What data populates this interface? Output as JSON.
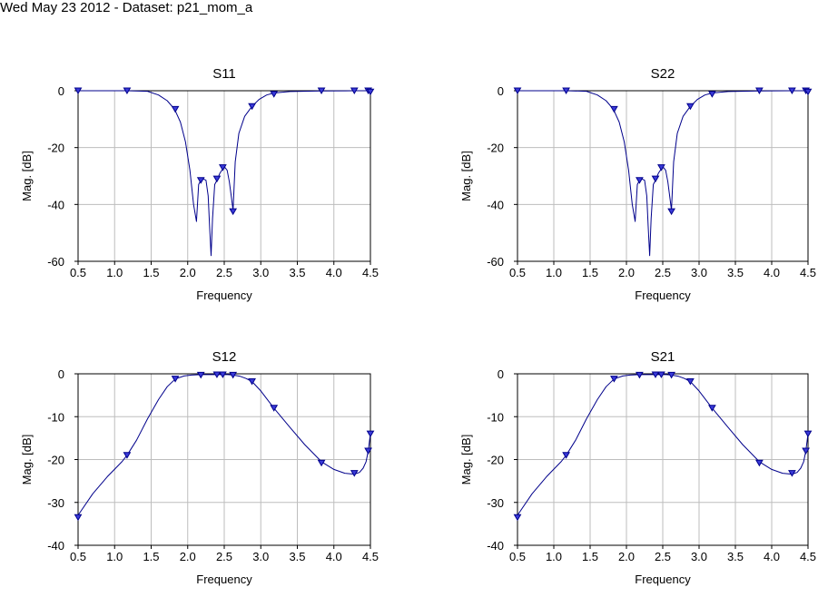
{
  "header": {
    "title": "Wed May 23 2012 - Dataset: p21_mom_a"
  },
  "colors": {
    "trace": "#00008B",
    "marker_fill": "#3A3AD8",
    "grid": "#BDBDBD"
  },
  "chart_data": [
    {
      "type": "line",
      "title": "S11",
      "xlabel": "Frequency",
      "ylabel": "Mag. [dB]",
      "xlim": [
        0.5,
        4.5
      ],
      "ylim": [
        -60,
        0
      ],
      "xticks": [
        "0.5",
        "1.0",
        "1.5",
        "2.0",
        "2.5",
        "3.0",
        "3.5",
        "4.0",
        "4.5"
      ],
      "yticks": [
        "0",
        "-20",
        "-40",
        "-60"
      ],
      "grid": true,
      "series": [
        {
          "x": [
            0.5,
            1.17,
            1.45,
            1.6,
            1.72,
            1.82,
            1.9,
            1.97,
            2.03,
            2.08,
            2.12,
            2.15,
            2.18,
            2.21,
            2.25,
            2.28,
            2.3,
            2.32,
            2.34,
            2.37,
            2.4,
            2.44,
            2.48,
            2.51,
            2.54,
            2.57,
            2.6,
            2.62,
            2.65,
            2.7,
            2.78,
            2.88,
            2.98,
            3.08,
            3.18,
            3.4,
            3.83,
            4.28,
            4.47,
            4.5
          ],
          "y": [
            0,
            0,
            -0.2,
            -1.5,
            -3.5,
            -6.5,
            -11,
            -18,
            -28,
            -40,
            -46,
            -33,
            -31.5,
            -31,
            -31.5,
            -37,
            -48,
            -58,
            -45,
            -33,
            -31.5,
            -29,
            -27.5,
            -27,
            -28,
            -32,
            -38,
            -42,
            -25,
            -15,
            -9,
            -5.5,
            -3,
            -1.5,
            -0.8,
            -0.3,
            -0.1,
            0,
            0,
            -0.3
          ]
        }
      ],
      "markers": {
        "x": [
          0.5,
          1.17,
          1.83,
          2.18,
          2.4,
          2.48,
          2.62,
          2.88,
          3.18,
          3.83,
          4.28,
          4.47,
          4.5
        ],
        "y": [
          0,
          0,
          -6.5,
          -31.5,
          -31,
          -27,
          -42.5,
          -5.5,
          -1.2,
          0,
          0,
          0,
          -0.4
        ]
      }
    },
    {
      "type": "line",
      "title": "S22",
      "xlabel": "Frequency",
      "ylabel": "Mag. [dB]",
      "xlim": [
        0.5,
        4.5
      ],
      "ylim": [
        -60,
        0
      ],
      "xticks": [
        "0.5",
        "1.0",
        "1.5",
        "2.0",
        "2.5",
        "3.0",
        "3.5",
        "4.0",
        "4.5"
      ],
      "yticks": [
        "0",
        "-20",
        "-40",
        "-60"
      ],
      "grid": true,
      "series": [
        {
          "x": [
            0.5,
            1.17,
            1.45,
            1.6,
            1.72,
            1.82,
            1.9,
            1.97,
            2.03,
            2.08,
            2.12,
            2.15,
            2.18,
            2.21,
            2.25,
            2.28,
            2.3,
            2.32,
            2.34,
            2.37,
            2.4,
            2.44,
            2.48,
            2.51,
            2.54,
            2.57,
            2.6,
            2.62,
            2.65,
            2.7,
            2.78,
            2.88,
            2.98,
            3.08,
            3.18,
            3.4,
            3.83,
            4.28,
            4.47,
            4.5
          ],
          "y": [
            0,
            0,
            -0.2,
            -1.5,
            -3.5,
            -6.5,
            -11,
            -18,
            -28,
            -40,
            -46,
            -33,
            -31.5,
            -31,
            -31.5,
            -37,
            -48,
            -58,
            -45,
            -33,
            -31.5,
            -29,
            -27.5,
            -27,
            -28,
            -32,
            -38,
            -42,
            -25,
            -15,
            -9,
            -5.5,
            -3,
            -1.5,
            -0.8,
            -0.3,
            -0.1,
            0,
            0,
            -0.3
          ]
        }
      ],
      "markers": {
        "x": [
          0.5,
          1.17,
          1.83,
          2.18,
          2.4,
          2.48,
          2.62,
          2.88,
          3.18,
          3.83,
          4.28,
          4.47,
          4.5
        ],
        "y": [
          0,
          0,
          -6.5,
          -31.5,
          -31,
          -27,
          -42.5,
          -5.5,
          -1.2,
          0,
          0,
          0,
          -0.4
        ]
      }
    },
    {
      "type": "line",
      "title": "S12",
      "xlabel": "Frequency",
      "ylabel": "Mag. [dB]",
      "xlim": [
        0.5,
        4.5
      ],
      "ylim": [
        -40,
        0
      ],
      "xticks": [
        "0.5",
        "1.0",
        "1.5",
        "2.0",
        "2.5",
        "3.0",
        "3.5",
        "4.0",
        "4.5"
      ],
      "yticks": [
        "0",
        "-10",
        "-20",
        "-30",
        "-40"
      ],
      "grid": true,
      "series": [
        {
          "x": [
            0.5,
            0.7,
            0.9,
            1.1,
            1.17,
            1.3,
            1.45,
            1.6,
            1.72,
            1.83,
            1.95,
            2.05,
            2.18,
            2.3,
            2.4,
            2.48,
            2.55,
            2.62,
            2.72,
            2.8,
            2.88,
            3.0,
            3.18,
            3.4,
            3.6,
            3.83,
            4.0,
            4.15,
            4.28,
            4.35,
            4.4,
            4.44,
            4.47,
            4.5
          ],
          "y": [
            -33,
            -28,
            -24,
            -20.5,
            -19,
            -15.5,
            -10.5,
            -6,
            -3,
            -1.2,
            -0.5,
            -0.3,
            -0.2,
            -0.2,
            -0.2,
            -0.2,
            -0.2,
            -0.3,
            -0.6,
            -1.1,
            -1.8,
            -4,
            -8,
            -12.5,
            -16.5,
            -20.5,
            -22.3,
            -23.2,
            -23.4,
            -23,
            -22,
            -20.5,
            -18,
            -14
          ]
        }
      ],
      "markers": {
        "x": [
          0.5,
          1.17,
          1.83,
          2.18,
          2.4,
          2.48,
          2.62,
          2.88,
          3.18,
          3.83,
          4.28,
          4.47,
          4.5
        ],
        "y": [
          -33.5,
          -19,
          -1.2,
          -0.3,
          -0.2,
          -0.2,
          -0.3,
          -1.8,
          -8,
          -20.8,
          -23.2,
          -18,
          -14
        ]
      }
    },
    {
      "type": "line",
      "title": "S21",
      "xlabel": "Frequency",
      "ylabel": "Mag. [dB]",
      "xlim": [
        0.5,
        4.5
      ],
      "ylim": [
        -40,
        0
      ],
      "xticks": [
        "0.5",
        "1.0",
        "1.5",
        "2.0",
        "2.5",
        "3.0",
        "3.5",
        "4.0",
        "4.5"
      ],
      "yticks": [
        "0",
        "-10",
        "-20",
        "-30",
        "-40"
      ],
      "grid": true,
      "series": [
        {
          "x": [
            0.5,
            0.7,
            0.9,
            1.1,
            1.17,
            1.3,
            1.45,
            1.6,
            1.72,
            1.83,
            1.95,
            2.05,
            2.18,
            2.3,
            2.4,
            2.48,
            2.55,
            2.62,
            2.72,
            2.8,
            2.88,
            3.0,
            3.18,
            3.4,
            3.6,
            3.83,
            4.0,
            4.15,
            4.28,
            4.35,
            4.4,
            4.44,
            4.47,
            4.5
          ],
          "y": [
            -33,
            -28,
            -24,
            -20.5,
            -19,
            -15.5,
            -10.5,
            -6,
            -3,
            -1.2,
            -0.5,
            -0.3,
            -0.2,
            -0.2,
            -0.2,
            -0.2,
            -0.2,
            -0.3,
            -0.6,
            -1.1,
            -1.8,
            -4,
            -8,
            -12.5,
            -16.5,
            -20.5,
            -22.3,
            -23.2,
            -23.4,
            -23,
            -22,
            -20.5,
            -18,
            -14
          ]
        }
      ],
      "markers": {
        "x": [
          0.5,
          1.17,
          1.83,
          2.18,
          2.4,
          2.48,
          2.62,
          2.88,
          3.18,
          3.83,
          4.28,
          4.47,
          4.5
        ],
        "y": [
          -33.5,
          -19,
          -1.2,
          -0.3,
          -0.2,
          -0.2,
          -0.3,
          -1.8,
          -8,
          -20.8,
          -23.2,
          -18,
          -14
        ]
      }
    }
  ]
}
